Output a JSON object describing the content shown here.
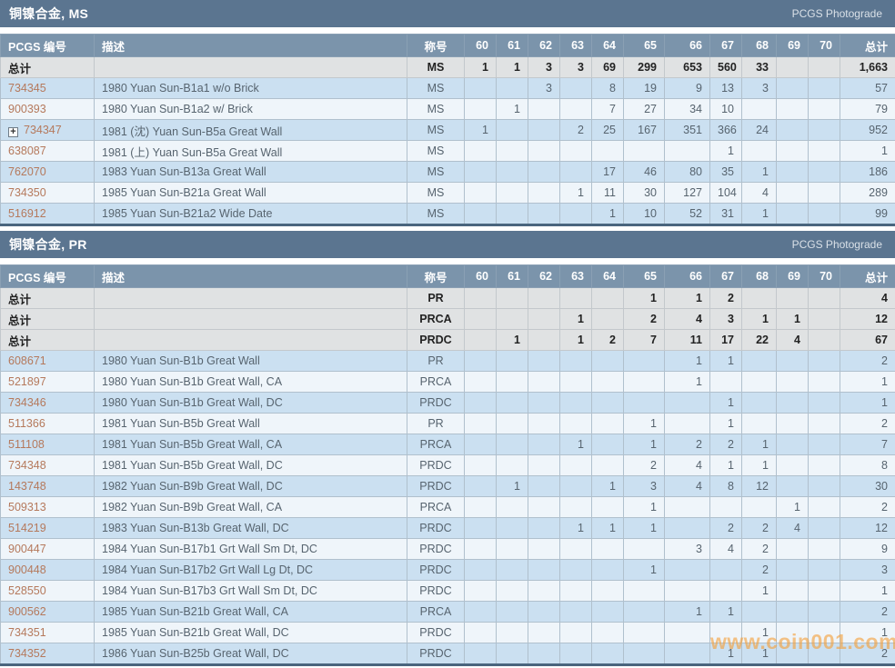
{
  "labels": {
    "pcgs_number": "PCGS 编号",
    "description": "描述",
    "designation": "称号",
    "total": "总计",
    "totals_row": "总计",
    "photograde": "PCGS Photograde"
  },
  "grade_columns": [
    "60",
    "61",
    "62",
    "63",
    "64",
    "65",
    "66",
    "67",
    "68",
    "69",
    "70"
  ],
  "colors": {
    "title_bar": "#5b7590",
    "header_row": "#7b94ab",
    "totals_row_bg": "#e0e2e3",
    "row_odd_bg": "#cbe0f1",
    "row_even_bg": "#eff5fa",
    "table_bottom_border": "#4a657e",
    "pcgs_link": "#b5795c",
    "watermark": "#f4a03c"
  },
  "watermark": "www.coin001.com",
  "tables": [
    {
      "title": "铜镍合金, MS",
      "totals": [
        {
          "designation": "MS",
          "grades": [
            "1",
            "1",
            "3",
            "3",
            "69",
            "299",
            "653",
            "560",
            "33",
            "",
            ""
          ],
          "total": "1,663"
        }
      ],
      "rows": [
        {
          "pcgs": "734345",
          "expandable": false,
          "description": "1980 Yuan Sun-B1a1 w/o Brick",
          "designation": "MS",
          "grades": [
            "",
            "",
            "3",
            "",
            "8",
            "19",
            "9",
            "13",
            "3",
            "",
            ""
          ],
          "total": "57"
        },
        {
          "pcgs": "900393",
          "expandable": false,
          "description": "1980 Yuan Sun-B1a2 w/ Brick",
          "designation": "MS",
          "grades": [
            "",
            "1",
            "",
            "",
            "7",
            "27",
            "34",
            "10",
            "",
            "",
            ""
          ],
          "total": "79"
        },
        {
          "pcgs": "734347",
          "expandable": true,
          "description": "1981 (沈) Yuan Sun-B5a Great Wall",
          "designation": "MS",
          "grades": [
            "1",
            "",
            "",
            "2",
            "25",
            "167",
            "351",
            "366",
            "24",
            "",
            ""
          ],
          "total": "952"
        },
        {
          "pcgs": "638087",
          "expandable": false,
          "description": "1981 (上) Yuan Sun-B5a Great Wall",
          "designation": "MS",
          "grades": [
            "",
            "",
            "",
            "",
            "",
            "",
            "",
            "1",
            "",
            "",
            ""
          ],
          "total": "1"
        },
        {
          "pcgs": "762070",
          "expandable": false,
          "description": "1983 Yuan Sun-B13a Great Wall",
          "designation": "MS",
          "grades": [
            "",
            "",
            "",
            "",
            "17",
            "46",
            "80",
            "35",
            "1",
            "",
            ""
          ],
          "total": "186"
        },
        {
          "pcgs": "734350",
          "expandable": false,
          "description": "1985 Yuan Sun-B21a Great Wall",
          "designation": "MS",
          "grades": [
            "",
            "",
            "",
            "1",
            "11",
            "30",
            "127",
            "104",
            "4",
            "",
            ""
          ],
          "total": "289"
        },
        {
          "pcgs": "516912",
          "expandable": false,
          "description": "1985 Yuan Sun-B21a2 Wide Date",
          "designation": "MS",
          "grades": [
            "",
            "",
            "",
            "",
            "1",
            "10",
            "52",
            "31",
            "1",
            "",
            ""
          ],
          "total": "99"
        }
      ]
    },
    {
      "title": "铜镍合金, PR",
      "totals": [
        {
          "designation": "PR",
          "grades": [
            "",
            "",
            "",
            "",
            "",
            "1",
            "1",
            "2",
            "",
            "",
            ""
          ],
          "total": "4"
        },
        {
          "designation": "PRCA",
          "grades": [
            "",
            "",
            "",
            "1",
            "",
            "2",
            "4",
            "3",
            "1",
            "1",
            ""
          ],
          "total": "12"
        },
        {
          "designation": "PRDC",
          "grades": [
            "",
            "1",
            "",
            "1",
            "2",
            "7",
            "11",
            "17",
            "22",
            "4",
            ""
          ],
          "total": "67"
        }
      ],
      "rows": [
        {
          "pcgs": "608671",
          "expandable": false,
          "description": "1980 Yuan Sun-B1b Great Wall",
          "designation": "PR",
          "grades": [
            "",
            "",
            "",
            "",
            "",
            "",
            "1",
            "1",
            "",
            "",
            ""
          ],
          "total": "2"
        },
        {
          "pcgs": "521897",
          "expandable": false,
          "description": "1980 Yuan Sun-B1b Great Wall, CA",
          "designation": "PRCA",
          "grades": [
            "",
            "",
            "",
            "",
            "",
            "",
            "1",
            "",
            "",
            "",
            ""
          ],
          "total": "1"
        },
        {
          "pcgs": "734346",
          "expandable": false,
          "description": "1980 Yuan Sun-B1b Great Wall, DC",
          "designation": "PRDC",
          "grades": [
            "",
            "",
            "",
            "",
            "",
            "",
            "",
            "1",
            "",
            "",
            ""
          ],
          "total": "1"
        },
        {
          "pcgs": "511366",
          "expandable": false,
          "description": "1981 Yuan Sun-B5b Great Wall",
          "designation": "PR",
          "grades": [
            "",
            "",
            "",
            "",
            "",
            "1",
            "",
            "1",
            "",
            "",
            ""
          ],
          "total": "2"
        },
        {
          "pcgs": "511108",
          "expandable": false,
          "description": "1981 Yuan Sun-B5b Great Wall, CA",
          "designation": "PRCA",
          "grades": [
            "",
            "",
            "",
            "1",
            "",
            "1",
            "2",
            "2",
            "1",
            "",
            ""
          ],
          "total": "7"
        },
        {
          "pcgs": "734348",
          "expandable": false,
          "description": "1981 Yuan Sun-B5b Great Wall, DC",
          "designation": "PRDC",
          "grades": [
            "",
            "",
            "",
            "",
            "",
            "2",
            "4",
            "1",
            "1",
            "",
            ""
          ],
          "total": "8"
        },
        {
          "pcgs": "143748",
          "expandable": false,
          "description": "1982 Yuan Sun-B9b Great Wall, DC",
          "designation": "PRDC",
          "grades": [
            "",
            "1",
            "",
            "",
            "1",
            "3",
            "4",
            "8",
            "12",
            "",
            ""
          ],
          "total": "30"
        },
        {
          "pcgs": "509313",
          "expandable": false,
          "description": "1982 Yuan Sun-B9b Great Wall, CA",
          "designation": "PRCA",
          "grades": [
            "",
            "",
            "",
            "",
            "",
            "1",
            "",
            "",
            "",
            "1",
            ""
          ],
          "total": "2"
        },
        {
          "pcgs": "514219",
          "expandable": false,
          "description": "1983 Yuan Sun-B13b Great Wall, DC",
          "designation": "PRDC",
          "grades": [
            "",
            "",
            "",
            "1",
            "1",
            "1",
            "",
            "2",
            "2",
            "4",
            ""
          ],
          "total": "12"
        },
        {
          "pcgs": "900447",
          "expandable": false,
          "description": "1984 Yuan Sun-B17b1 Grt Wall Sm Dt, DC",
          "designation": "PRDC",
          "grades": [
            "",
            "",
            "",
            "",
            "",
            "",
            "3",
            "4",
            "2",
            "",
            ""
          ],
          "total": "9"
        },
        {
          "pcgs": "900448",
          "expandable": false,
          "description": "1984 Yuan Sun-B17b2 Grt Wall Lg Dt, DC",
          "designation": "PRDC",
          "grades": [
            "",
            "",
            "",
            "",
            "",
            "1",
            "",
            "",
            "2",
            "",
            ""
          ],
          "total": "3"
        },
        {
          "pcgs": "528550",
          "expandable": false,
          "description": "1984 Yuan Sun-B17b3 Grt Wall Sm Dt, DC",
          "designation": "PRDC",
          "grades": [
            "",
            "",
            "",
            "",
            "",
            "",
            "",
            "",
            "1",
            "",
            ""
          ],
          "total": "1"
        },
        {
          "pcgs": "900562",
          "expandable": false,
          "description": "1985 Yuan Sun-B21b Great Wall, CA",
          "designation": "PRCA",
          "grades": [
            "",
            "",
            "",
            "",
            "",
            "",
            "1",
            "1",
            "",
            "",
            ""
          ],
          "total": "2"
        },
        {
          "pcgs": "734351",
          "expandable": false,
          "description": "1985 Yuan Sun-B21b Great Wall, DC",
          "designation": "PRDC",
          "grades": [
            "",
            "",
            "",
            "",
            "",
            "",
            "",
            "",
            "1",
            "",
            ""
          ],
          "total": "1"
        },
        {
          "pcgs": "734352",
          "expandable": false,
          "description": "1986 Yuan Sun-B25b Great Wall, DC",
          "designation": "PRDC",
          "grades": [
            "",
            "",
            "",
            "",
            "",
            "",
            "",
            "1",
            "1",
            "",
            ""
          ],
          "total": "2"
        }
      ]
    }
  ]
}
